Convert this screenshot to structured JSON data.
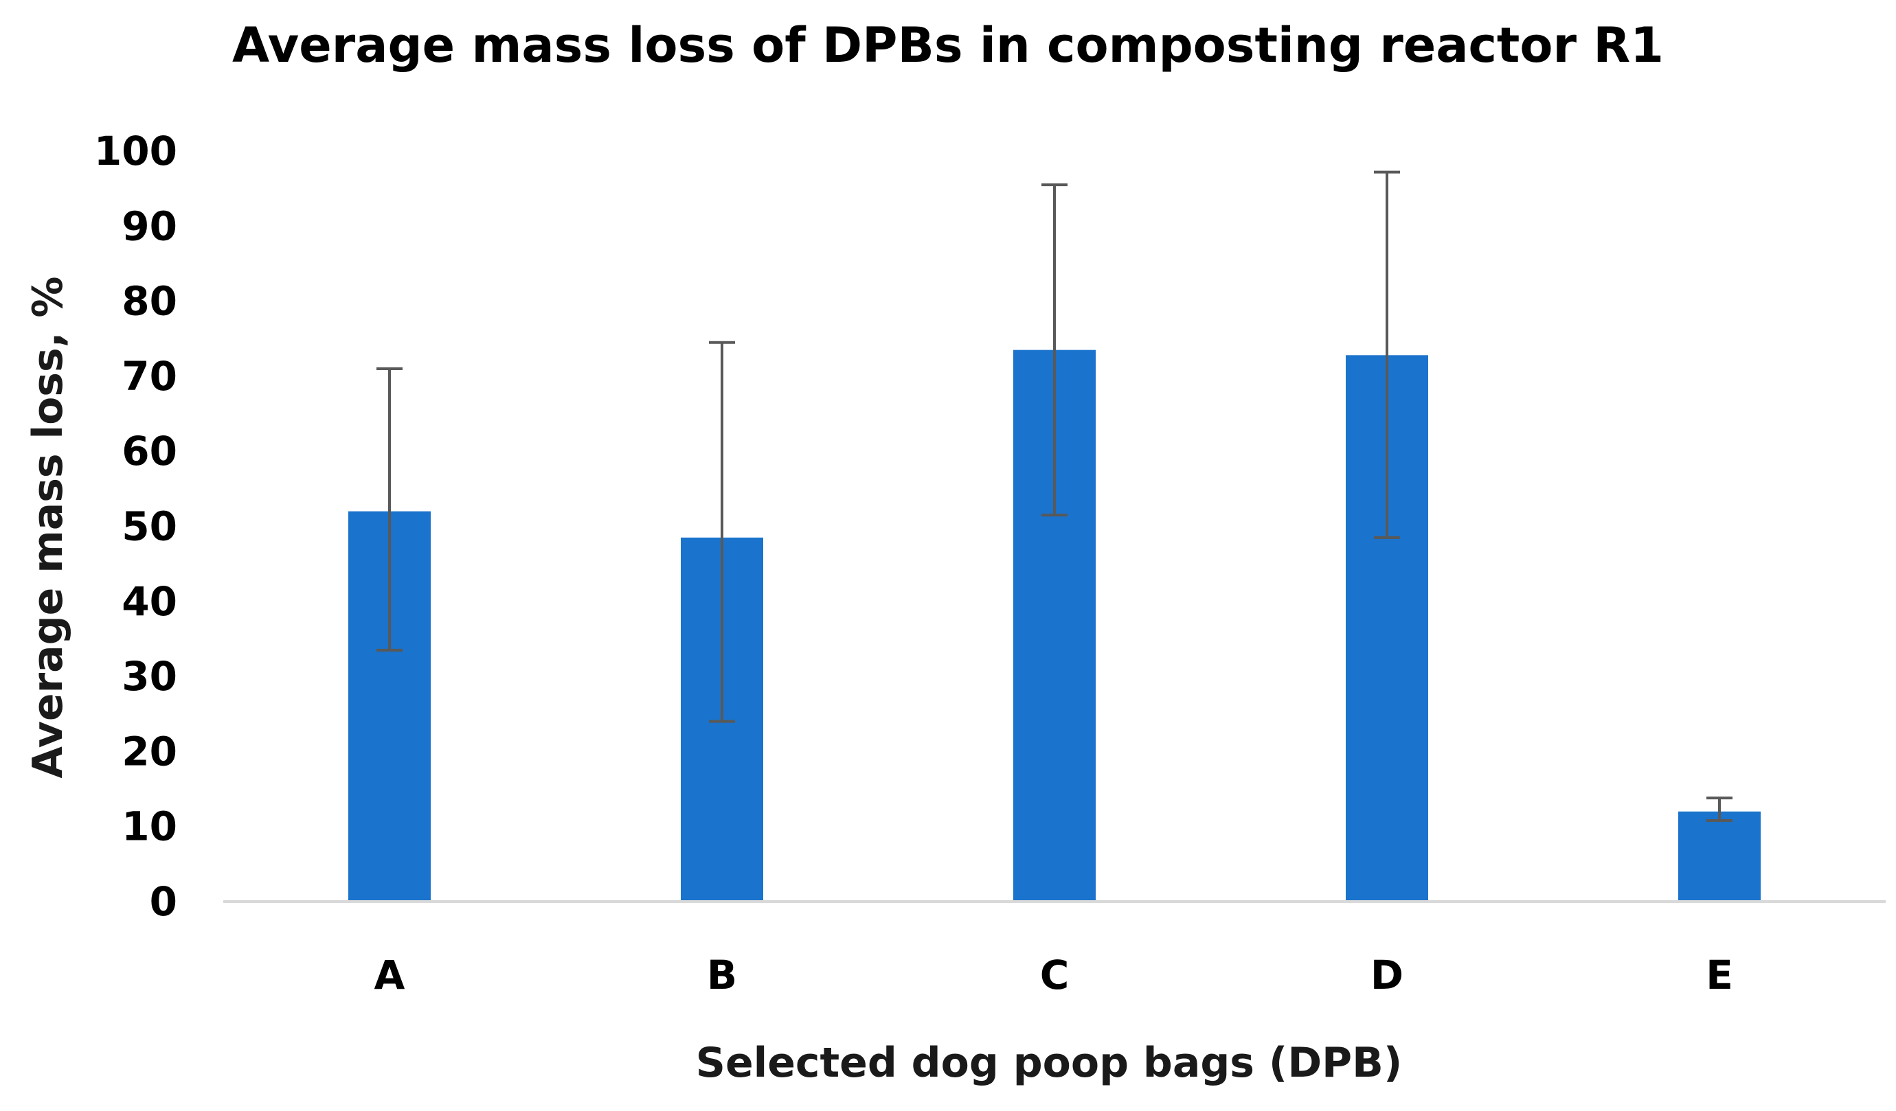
{
  "chart_data": {
    "type": "bar",
    "title": "Average mass loss of DPBs in composting reactor R1",
    "xlabel": "Selected dog poop bags  (DPB)",
    "ylabel": "Average mass  loss, %",
    "categories": [
      "A",
      "B",
      "C",
      "D",
      "E"
    ],
    "series": [
      {
        "name": "Average mass loss",
        "values": [
          52,
          48.5,
          73.5,
          72.8,
          12
        ],
        "error_low": [
          33.5,
          24,
          51.5,
          48.5,
          10.8
        ],
        "error_high": [
          71,
          74.5,
          95.5,
          97.2,
          13.8
        ]
      }
    ],
    "ylim": [
      0,
      100
    ],
    "yticks": [
      0,
      10,
      20,
      30,
      40,
      50,
      60,
      70,
      80,
      90,
      100
    ],
    "grid": false,
    "colors": {
      "bar": "#1a73cc",
      "error_bar": "#595959",
      "axis": "#d9d9d9"
    }
  }
}
